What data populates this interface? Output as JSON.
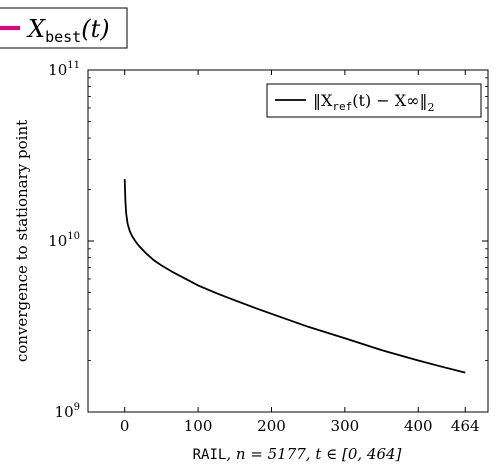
{
  "top_legend": {
    "series_main": "X",
    "series_sub": "best",
    "series_args": "(t)",
    "line_color": "#e6007e"
  },
  "chart_data": {
    "type": "line",
    "ylabel": "convergence to stationary point",
    "xlabel": {
      "dataset": "RAIL",
      "rest": ", n = 5177, t ∈ [0, 464]"
    },
    "x_ticks": [
      0,
      100,
      200,
      300,
      400,
      464
    ],
    "x_tick_labels": [
      "0",
      "100",
      "200",
      "300",
      "400",
      "464"
    ],
    "y_ticks": [
      1000000000,
      10000000000,
      100000000000
    ],
    "y_tick_labels": [
      {
        "base": "10",
        "exp": "9"
      },
      {
        "base": "10",
        "exp": "10"
      },
      {
        "base": "10",
        "exp": "11"
      }
    ],
    "xlim": [
      -50,
      495
    ],
    "ylim": [
      1000000000,
      100000000000
    ],
    "yscale": "log",
    "legend": {
      "placement": "top-right",
      "label_pre": "‖X",
      "label_sub": "ref",
      "label_post": "(t) − X∞‖",
      "label_norm_sub": "2"
    },
    "series": [
      {
        "color": "#000000",
        "x": [
          0,
          1,
          2,
          4,
          7,
          10,
          15,
          20,
          30,
          40,
          50,
          65,
          80,
          100,
          125,
          150,
          175,
          200,
          250,
          300,
          350,
          400,
          430,
          464
        ],
        "y": [
          23000000000,
          17000000000,
          14500000000,
          12600000000,
          11400000000,
          10700000000,
          9900000000,
          9300000000,
          8400000000,
          7700000000,
          7200000000,
          6600000000,
          6100000000,
          5500000000,
          4950000000,
          4500000000,
          4100000000,
          3750000000,
          3150000000,
          2700000000,
          2300000000,
          2000000000,
          1850000000,
          1700000000
        ]
      }
    ]
  }
}
